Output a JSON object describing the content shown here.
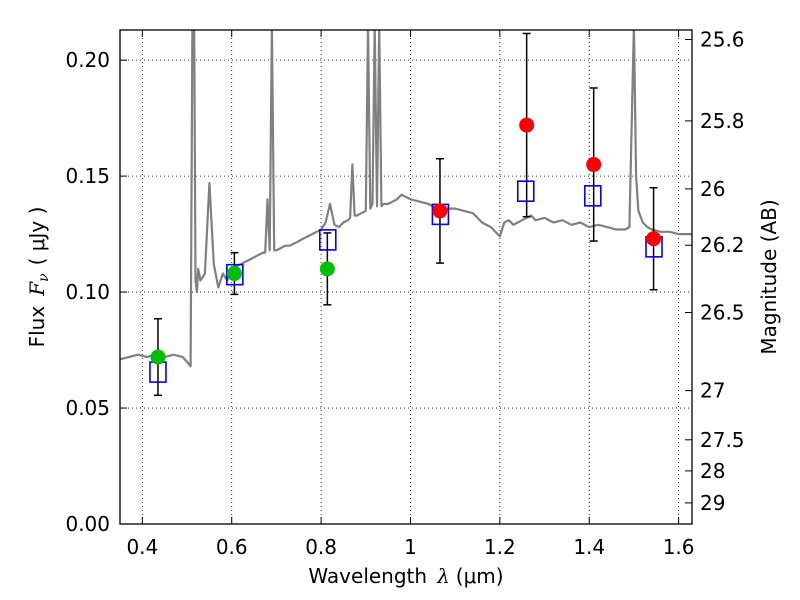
{
  "chart_data": {
    "type": "scatter",
    "xlabel_text": "Wavelength",
    "xlabel_symbol": "λ",
    "xlabel_unit": "(μm)",
    "ylabel_text": "Flux",
    "ylabel_symbol": "F",
    "ylabel_sub": "ν",
    "ylabel_unit": "( μJy )",
    "y2label": "Magnitude (AB)",
    "xlim": [
      0.35,
      1.63
    ],
    "ylim": [
      0.0,
      0.213
    ],
    "x_ticks": [
      0.4,
      0.6,
      0.8,
      1.0,
      1.2,
      1.4,
      1.6
    ],
    "x_tick_labels": [
      "0.4",
      "0.6",
      "0.8",
      "1",
      "1.2",
      "1.4",
      "1.6"
    ],
    "y_ticks": [
      0.0,
      0.05,
      0.1,
      0.15,
      0.2
    ],
    "y_tick_labels": [
      "0.00",
      "0.05",
      "0.10",
      "0.15",
      "0.20"
    ],
    "y2_ticks": [
      {
        "label": "25.6",
        "flux": 0.2089
      },
      {
        "label": "25.8",
        "flux": 0.1738
      },
      {
        "label": "26",
        "flux": 0.1445
      },
      {
        "label": "26.2",
        "flux": 0.1202
      },
      {
        "label": "26.5",
        "flux": 0.0912
      },
      {
        "label": "27",
        "flux": 0.0575
      },
      {
        "label": "27.5",
        "flux": 0.0363
      },
      {
        "label": "28",
        "flux": 0.0229
      },
      {
        "label": "29",
        "flux": 0.0091
      }
    ],
    "grid": true,
    "colors": {
      "spectrum": "#808080",
      "green": "#00bf00",
      "red": "#ff0000",
      "model": "#0000ff",
      "errorbar": "#000000"
    },
    "spectrum": {
      "name": "",
      "x": [
        0.35,
        0.37,
        0.39,
        0.41,
        0.43,
        0.45,
        0.47,
        0.49,
        0.5,
        0.508,
        0.512,
        0.516,
        0.519,
        0.522,
        0.525,
        0.53,
        0.54,
        0.55,
        0.56,
        0.57,
        0.58,
        0.59,
        0.6,
        0.61,
        0.62,
        0.63,
        0.64,
        0.65,
        0.66,
        0.67,
        0.675,
        0.68,
        0.685,
        0.69,
        0.695,
        0.7,
        0.71,
        0.72,
        0.73,
        0.74,
        0.75,
        0.76,
        0.77,
        0.78,
        0.79,
        0.8,
        0.81,
        0.82,
        0.83,
        0.84,
        0.85,
        0.86,
        0.865,
        0.87,
        0.875,
        0.88,
        0.89,
        0.9,
        0.905,
        0.91,
        0.915,
        0.92,
        0.925,
        0.93,
        0.935,
        0.94,
        0.95,
        0.96,
        0.97,
        0.98,
        0.99,
        1.0,
        1.02,
        1.04,
        1.05,
        1.06,
        1.08,
        1.1,
        1.12,
        1.14,
        1.16,
        1.18,
        1.2,
        1.21,
        1.22,
        1.23,
        1.24,
        1.25,
        1.26,
        1.27,
        1.28,
        1.3,
        1.32,
        1.34,
        1.36,
        1.38,
        1.4,
        1.42,
        1.44,
        1.46,
        1.48,
        1.49,
        1.5,
        1.505,
        1.51,
        1.52,
        1.53,
        1.54,
        1.56,
        1.58,
        1.6,
        1.63
      ],
      "y": [
        0.071,
        0.072,
        0.073,
        0.072,
        0.073,
        0.072,
        0.073,
        0.072,
        0.07,
        0.068,
        0.215,
        0.215,
        0.105,
        0.1,
        0.11,
        0.105,
        0.108,
        0.147,
        0.112,
        0.102,
        0.108,
        0.105,
        0.11,
        0.111,
        0.112,
        0.113,
        0.114,
        0.115,
        0.116,
        0.117,
        0.117,
        0.14,
        0.118,
        0.215,
        0.118,
        0.118,
        0.119,
        0.12,
        0.12,
        0.121,
        0.122,
        0.123,
        0.124,
        0.125,
        0.126,
        0.127,
        0.13,
        0.138,
        0.129,
        0.128,
        0.13,
        0.131,
        0.132,
        0.155,
        0.133,
        0.133,
        0.134,
        0.135,
        0.215,
        0.136,
        0.138,
        0.215,
        0.137,
        0.215,
        0.137,
        0.138,
        0.138,
        0.139,
        0.14,
        0.142,
        0.141,
        0.14,
        0.139,
        0.138,
        0.137,
        0.136,
        0.136,
        0.136,
        0.135,
        0.134,
        0.13,
        0.128,
        0.124,
        0.13,
        0.131,
        0.129,
        0.13,
        0.131,
        0.132,
        0.133,
        0.131,
        0.132,
        0.13,
        0.131,
        0.129,
        0.13,
        0.128,
        0.129,
        0.128,
        0.127,
        0.127,
        0.128,
        0.215,
        0.15,
        0.135,
        0.13,
        0.128,
        0.127,
        0.126,
        0.126,
        0.125,
        0.125
      ]
    },
    "green_points": [
      {
        "x": 0.435,
        "y": 0.072,
        "err": 0.0165
      },
      {
        "x": 0.606,
        "y": 0.108,
        "err": 0.009
      },
      {
        "x": 0.814,
        "y": 0.11,
        "err": 0.0155
      }
    ],
    "red_points": [
      {
        "x": 1.066,
        "y": 0.135,
        "err": 0.0225
      },
      {
        "x": 1.26,
        "y": 0.172,
        "err": 0.0395
      },
      {
        "x": 1.41,
        "y": 0.155,
        "err": 0.033
      },
      {
        "x": 1.544,
        "y": 0.123,
        "err": 0.022
      }
    ],
    "model_points": [
      {
        "x": 0.435,
        "y": 0.0655
      },
      {
        "x": 0.607,
        "y": 0.1075
      },
      {
        "x": 0.815,
        "y": 0.1225
      },
      {
        "x": 1.067,
        "y": 0.1335
      },
      {
        "x": 1.258,
        "y": 0.1435
      },
      {
        "x": 1.408,
        "y": 0.1415
      },
      {
        "x": 1.545,
        "y": 0.1195
      }
    ]
  }
}
